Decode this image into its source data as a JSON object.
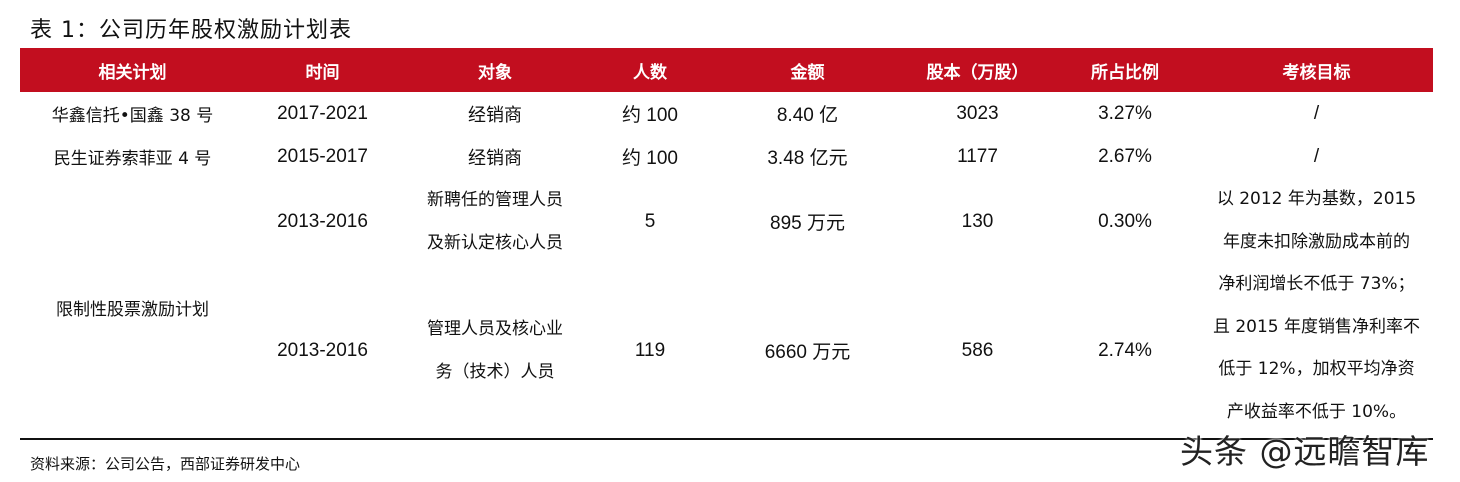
{
  "title": "表 1：公司历年股权激励计划表",
  "columns": [
    "相关计划",
    "时间",
    "对象",
    "人数",
    "金额",
    "股本（万股）",
    "所占比例",
    "考核目标"
  ],
  "rows": [
    {
      "plan": "华鑫信托•国鑫 38 号",
      "time": "2017-2021",
      "target": "经销商",
      "count": "约 100",
      "amount": "8.40 亿",
      "shares": "3023",
      "ratio": "3.27%",
      "goal": "/"
    },
    {
      "plan": "民生证券索菲亚 4 号",
      "time": "2015-2017",
      "target": "经销商",
      "count": "约 100",
      "amount": "3.48 亿元",
      "shares": "1177",
      "ratio": "2.67%",
      "goal": "/"
    },
    {
      "plan": "限制性股票激励计划",
      "time": "2013-2016",
      "target_lines": [
        "新聘任的管理人员",
        "及新认定核心人员"
      ],
      "count": "5",
      "amount": "895 万元",
      "shares": "130",
      "ratio": "0.30%",
      "goal_lines": [
        "以 2012 年为基数，2015",
        "年度未扣除激励成本前的",
        "净利润增长不低于 73%；",
        "且 2015 年度销售净利率不",
        "低于 12%，加权平均净资",
        "产收益率不低于 10%。"
      ]
    },
    {
      "time": "2013-2016",
      "target_lines": [
        "管理人员及核心业",
        "务（技术）人员"
      ],
      "count": "119",
      "amount": "6660 万元",
      "shares": "586",
      "ratio": "2.74%"
    }
  ],
  "source": "资料来源：公司公告，西部证券研发中心",
  "watermark": "头条 @远瞻智库",
  "colors": {
    "header_bg": "#c20e1f"
  }
}
